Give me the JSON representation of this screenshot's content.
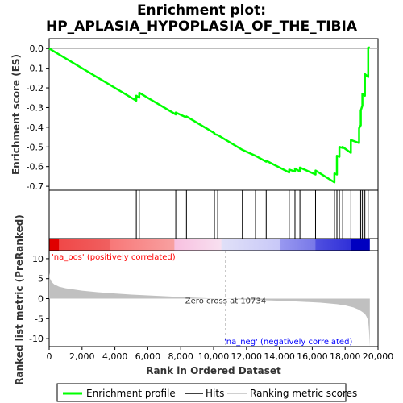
{
  "chart_data": {
    "title_line1": "Enrichment plot:",
    "title_line2": "HP_APLASIA_HYPOPLASIA_OF_THE_TIBIA",
    "es_panel": {
      "type": "line",
      "ylabel": "Enrichment score (ES)",
      "ylim": [
        -0.72,
        0.05
      ],
      "yticks": [
        "0.0",
        "-0.1",
        "-0.2",
        "-0.3",
        "-0.4",
        "-0.5",
        "-0.6",
        "-0.7"
      ],
      "ytick_values": [
        0.0,
        -0.1,
        -0.2,
        -0.3,
        -0.4,
        -0.5,
        -0.6,
        -0.7
      ],
      "color": "#00ff00",
      "x": [
        0,
        5300,
        5300,
        5480,
        5480,
        7700,
        7700,
        8350,
        8350,
        10050,
        10050,
        10250,
        10250,
        11750,
        11750,
        12550,
        12550,
        13200,
        13200,
        14600,
        14600,
        14950,
        14950,
        15250,
        15250,
        16200,
        16200,
        17350,
        17350,
        17500,
        17500,
        17650,
        17650,
        17850,
        17850,
        18350,
        18350,
        18850,
        18850,
        18950,
        18950,
        19050,
        19050,
        19200,
        19200,
        19400,
        19400,
        19500
      ],
      "y": [
        0.0,
        -0.265,
        -0.24,
        -0.25,
        -0.225,
        -0.335,
        -0.325,
        -0.35,
        -0.345,
        -0.43,
        -0.435,
        -0.44,
        -0.44,
        -0.515,
        -0.515,
        -0.545,
        -0.545,
        -0.575,
        -0.57,
        -0.63,
        -0.615,
        -0.625,
        -0.61,
        -0.625,
        -0.605,
        -0.64,
        -0.62,
        -0.68,
        -0.635,
        -0.64,
        -0.545,
        -0.55,
        -0.5,
        -0.505,
        -0.5,
        -0.53,
        -0.465,
        -0.48,
        -0.405,
        -0.39,
        -0.315,
        -0.29,
        -0.23,
        -0.24,
        -0.13,
        -0.145,
        0.005,
        0.005
      ]
    },
    "hits_panel": {
      "hit_positions": [
        5300,
        5480,
        7700,
        8350,
        10050,
        10250,
        11750,
        12550,
        13200,
        14600,
        14950,
        15250,
        16200,
        17350,
        17500,
        17650,
        17850,
        18350,
        18850,
        18950,
        19050,
        19200,
        19400
      ]
    },
    "rank_panel": {
      "type": "area",
      "xlabel": "Rank in Ordered Dataset",
      "ylabel": "Ranked list metric (PreRanked)",
      "xlim": [
        0,
        20000
      ],
      "ylim": [
        -12,
        12
      ],
      "xticks": [
        "0",
        "2,000",
        "4,000",
        "6,000",
        "8,000",
        "10,000",
        "12,000",
        "14,000",
        "16,000",
        "18,000",
        "20,000"
      ],
      "xtick_values": [
        0,
        2000,
        4000,
        6000,
        8000,
        10000,
        12000,
        14000,
        16000,
        18000,
        20000
      ],
      "yticks": [
        "10",
        "5",
        "0",
        "-5",
        "-10"
      ],
      "ytick_values": [
        10,
        5,
        0,
        -5,
        -10
      ],
      "x": [
        0,
        50,
        150,
        300,
        600,
        1000,
        2000,
        3000,
        4000,
        5000,
        6000,
        7000,
        8000,
        9000,
        10000,
        10734,
        11500,
        12500,
        13500,
        14500,
        15500,
        16500,
        17500,
        18000,
        18500,
        18800,
        19000,
        19200,
        19300,
        19400,
        19450,
        19500
      ],
      "values": [
        6.5,
        5.0,
        4.2,
        3.6,
        3.0,
        2.6,
        2.0,
        1.6,
        1.3,
        1.0,
        0.8,
        0.6,
        0.4,
        0.2,
        0.05,
        0.0,
        -0.15,
        -0.3,
        -0.45,
        -0.6,
        -0.8,
        -1.0,
        -1.4,
        -1.7,
        -2.2,
        -2.7,
        -3.2,
        -3.8,
        -4.5,
        -5.5,
        -8.0,
        -12.0
      ],
      "zero_cross_label": "Zero cross at 10734",
      "zero_cross_rank": 10734,
      "pos_label": "'na_pos' (positively correlated)",
      "neg_label": "'na_neg' (negatively correlated)",
      "pos_color": "#ff0000",
      "neg_color": "#0000ff",
      "fill_color": "#c0c0c0"
    },
    "legend": {
      "items": [
        {
          "label": "Enrichment profile",
          "color": "#00ff00",
          "style": "thick"
        },
        {
          "label": "Hits",
          "color": "#000000",
          "style": "thin"
        },
        {
          "label": "Ranking metric scores",
          "color": "#c0c0c0",
          "style": "thin"
        }
      ]
    }
  }
}
